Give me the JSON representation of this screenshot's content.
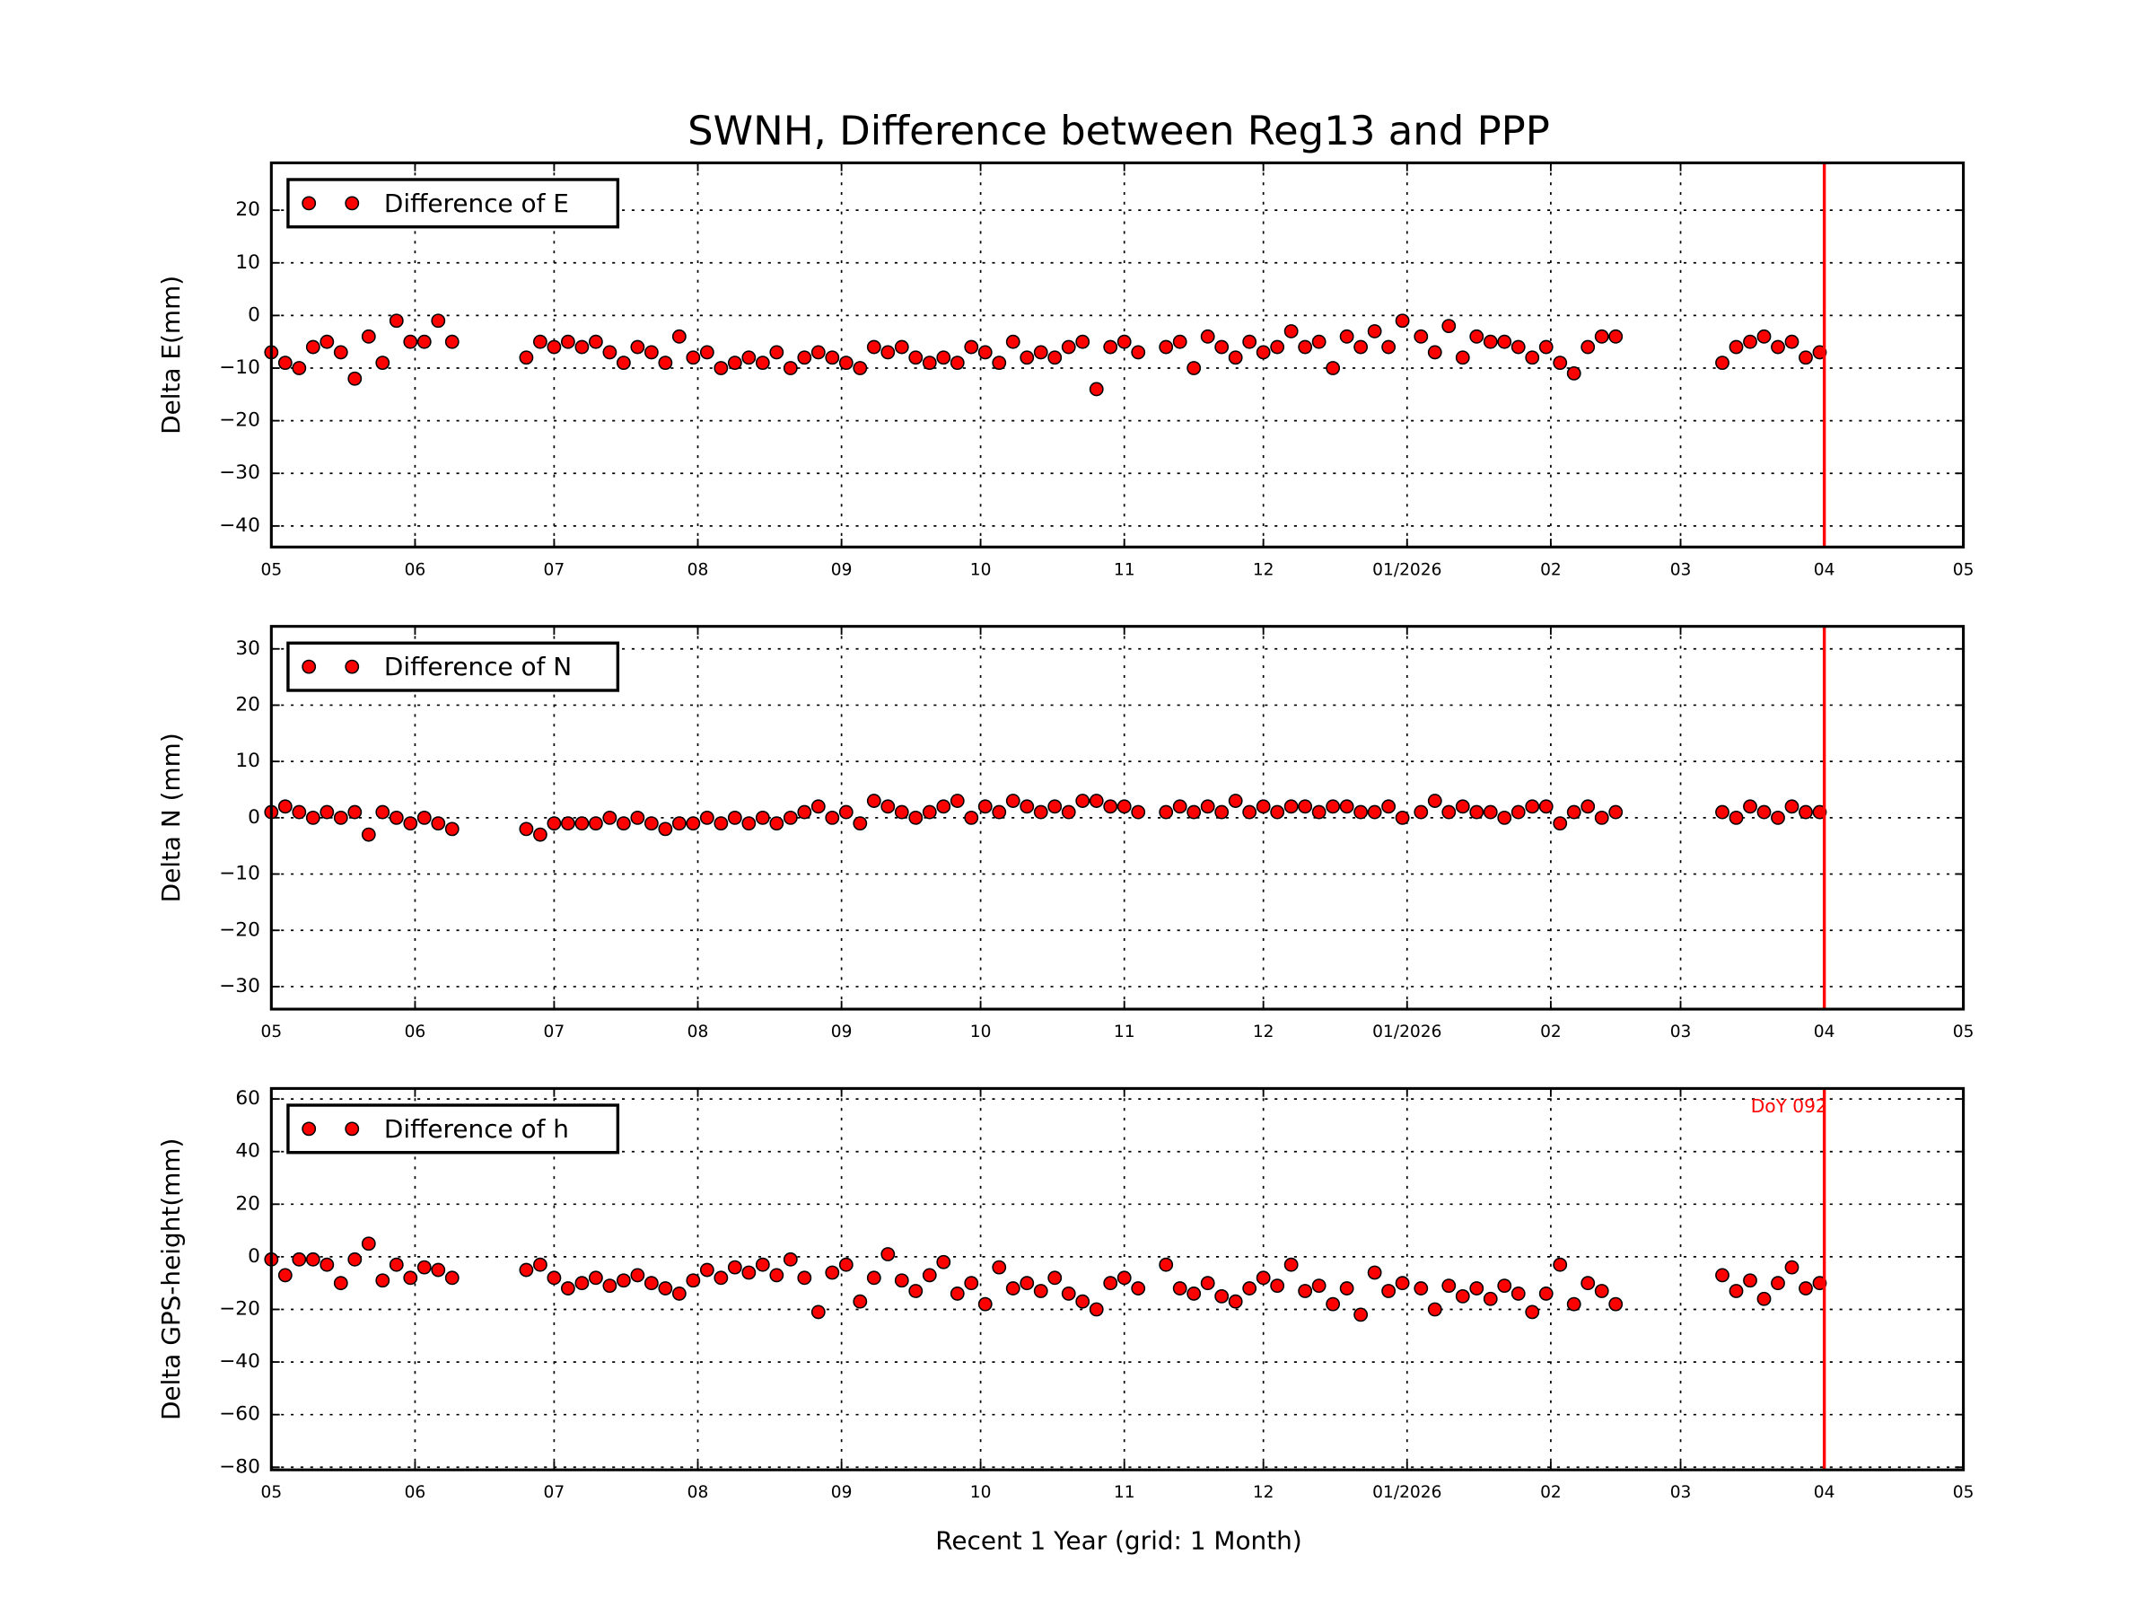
{
  "chart_data": [
    {
      "type": "scatter",
      "title": "SWNH, Difference between Reg13 and PPP",
      "ylabel": "Delta E(mm)",
      "legend": {
        "label": "Difference of E",
        "placement": "top-left"
      },
      "ylim": [
        -44,
        29
      ],
      "yticks": [
        20,
        10,
        0,
        -10,
        -20,
        -30,
        -40
      ],
      "grid": true,
      "series_key": "E"
    },
    {
      "type": "scatter",
      "ylabel": "Delta N (mm)",
      "legend": {
        "label": "Difference of N",
        "placement": "top-left"
      },
      "ylim": [
        -34,
        34
      ],
      "yticks": [
        30,
        20,
        10,
        0,
        -10,
        -20,
        -30
      ],
      "grid": true,
      "series_key": "N"
    },
    {
      "type": "scatter",
      "ylabel": "Delta GPS-height(mm)",
      "xlabel": "Recent 1 Year (grid: 1 Month)",
      "legend": {
        "label": "Difference of h",
        "placement": "top-left"
      },
      "ylim": [
        -81,
        64
      ],
      "yticks": [
        60,
        40,
        20,
        0,
        -20,
        -40,
        -60,
        -80
      ],
      "grid": true,
      "series_key": "h",
      "annotation": "DoY 092"
    }
  ],
  "x_axis": {
    "range": [
      "2025-05-01",
      "2026-05-01"
    ],
    "ticks": [
      {
        "date": "2025-05-01",
        "label": "05"
      },
      {
        "date": "2025-06-01",
        "label": "06"
      },
      {
        "date": "2025-07-01",
        "label": "07"
      },
      {
        "date": "2025-08-01",
        "label": "08"
      },
      {
        "date": "2025-09-01",
        "label": "09"
      },
      {
        "date": "2025-10-01",
        "label": "10"
      },
      {
        "date": "2025-11-01",
        "label": "11"
      },
      {
        "date": "2025-12-01",
        "label": "12"
      },
      {
        "date": "2026-01-01",
        "label": "01/2026"
      },
      {
        "date": "2026-02-01",
        "label": "02"
      },
      {
        "date": "2026-03-01",
        "label": "03"
      },
      {
        "date": "2026-04-01",
        "label": "04"
      },
      {
        "date": "2026-05-01",
        "label": "05"
      }
    ],
    "marker_line_date": "2026-04-01"
  },
  "colors": {
    "points": "#ff0000",
    "marker_line": "#ff0000"
  },
  "dates": [
    "2025-05-01",
    "2025-05-04",
    "2025-05-07",
    "2025-05-10",
    "2025-05-13",
    "2025-05-16",
    "2025-05-19",
    "2025-05-22",
    "2025-05-25",
    "2025-05-28",
    "2025-05-31",
    "2025-06-03",
    "2025-06-06",
    "2025-06-09",
    "2025-06-25",
    "2025-06-28",
    "2025-07-01",
    "2025-07-04",
    "2025-07-07",
    "2025-07-10",
    "2025-07-13",
    "2025-07-16",
    "2025-07-19",
    "2025-07-22",
    "2025-07-25",
    "2025-07-28",
    "2025-07-31",
    "2025-08-03",
    "2025-08-06",
    "2025-08-09",
    "2025-08-12",
    "2025-08-15",
    "2025-08-18",
    "2025-08-21",
    "2025-08-24",
    "2025-08-27",
    "2025-08-30",
    "2025-09-02",
    "2025-09-05",
    "2025-09-08",
    "2025-09-11",
    "2025-09-14",
    "2025-09-17",
    "2025-09-20",
    "2025-09-23",
    "2025-09-26",
    "2025-09-29",
    "2025-10-02",
    "2025-10-05",
    "2025-10-08",
    "2025-10-11",
    "2025-10-14",
    "2025-10-17",
    "2025-10-20",
    "2025-10-23",
    "2025-10-26",
    "2025-10-29",
    "2025-11-01",
    "2025-11-04",
    "2025-11-10",
    "2025-11-13",
    "2025-11-16",
    "2025-11-19",
    "2025-11-22",
    "2025-11-25",
    "2025-11-28",
    "2025-12-01",
    "2025-12-04",
    "2025-12-07",
    "2025-12-10",
    "2025-12-13",
    "2025-12-16",
    "2025-12-19",
    "2025-12-22",
    "2025-12-25",
    "2025-12-28",
    "2025-12-31",
    "2026-01-04",
    "2026-01-07",
    "2026-01-10",
    "2026-01-13",
    "2026-01-16",
    "2026-01-19",
    "2026-01-22",
    "2026-01-25",
    "2026-01-28",
    "2026-01-31",
    "2026-02-03",
    "2026-02-06",
    "2026-02-09",
    "2026-02-12",
    "2026-02-15",
    "2026-03-10",
    "2026-03-13",
    "2026-03-16",
    "2026-03-19",
    "2026-03-22",
    "2026-03-25",
    "2026-03-28",
    "2026-03-31"
  ],
  "series": {
    "E": [
      -7,
      -9,
      -10,
      -6,
      -5,
      -7,
      -12,
      -4,
      -9,
      -1,
      -5,
      -5,
      -1,
      -5,
      -8,
      -5,
      -6,
      -5,
      -6,
      -5,
      -7,
      -9,
      -6,
      -7,
      -9,
      -4,
      -8,
      -7,
      -10,
      -9,
      -8,
      -9,
      -7,
      -10,
      -8,
      -7,
      -8,
      -9,
      -10,
      -6,
      -7,
      -6,
      -8,
      -9,
      -8,
      -9,
      -6,
      -7,
      -9,
      -5,
      -8,
      -7,
      -8,
      -6,
      -5,
      -14,
      -6,
      -5,
      -7,
      -6,
      -5,
      -10,
      -4,
      -6,
      -8,
      -5,
      -7,
      -6,
      -3,
      -6,
      -5,
      -10,
      -4,
      -6,
      -3,
      -6,
      -1,
      -4,
      -7,
      -2,
      -8,
      -4,
      -5,
      -5,
      -6,
      -8,
      -6,
      -9,
      -11,
      -6,
      -4,
      -4,
      -9,
      -6,
      -5,
      -4,
      -6,
      -5,
      -8,
      -7
    ],
    "N": [
      1,
      2,
      1,
      0,
      1,
      0,
      1,
      -3,
      1,
      0,
      -1,
      0,
      -1,
      -2,
      -2,
      -3,
      -1,
      -1,
      -1,
      -1,
      0,
      -1,
      0,
      -1,
      -2,
      -1,
      -1,
      0,
      -1,
      0,
      -1,
      0,
      -1,
      0,
      1,
      2,
      0,
      1,
      -1,
      3,
      2,
      1,
      0,
      1,
      2,
      3,
      0,
      2,
      1,
      3,
      2,
      1,
      2,
      1,
      3,
      3,
      2,
      2,
      1,
      1,
      2,
      1,
      2,
      1,
      3,
      1,
      2,
      1,
      2,
      2,
      1,
      2,
      2,
      1,
      1,
      2,
      0,
      1,
      3,
      1,
      2,
      1,
      1,
      0,
      1,
      2,
      2,
      -1,
      1,
      2,
      0,
      1,
      1,
      0,
      2,
      1,
      0,
      2,
      1,
      1
    ],
    "h": [
      -1,
      -7,
      -1,
      -1,
      -3,
      -10,
      -1,
      5,
      -9,
      -3,
      -8,
      -4,
      -5,
      -8,
      -5,
      -3,
      -8,
      -12,
      -10,
      -8,
      -11,
      -9,
      -7,
      -10,
      -12,
      -14,
      -9,
      -5,
      -8,
      -4,
      -6,
      -3,
      -7,
      -1,
      -8,
      -21,
      -6,
      -3,
      -17,
      -8,
      1,
      -9,
      -13,
      -7,
      -2,
      -14,
      -10,
      -18,
      -4,
      -12,
      -10,
      -13,
      -8,
      -14,
      -17,
      -20,
      -10,
      -8,
      -12,
      -3,
      -12,
      -14,
      -10,
      -15,
      -17,
      -12,
      -8,
      -11,
      -3,
      -13,
      -11,
      -18,
      -12,
      -22,
      -6,
      -13,
      -10,
      -12,
      -20,
      -11,
      -15,
      -12,
      -16,
      -11,
      -14,
      -21,
      -14,
      -3,
      -18,
      -10,
      -13,
      -18,
      -7,
      -13,
      -9,
      -16,
      -10,
      -4,
      -12,
      -10
    ]
  }
}
